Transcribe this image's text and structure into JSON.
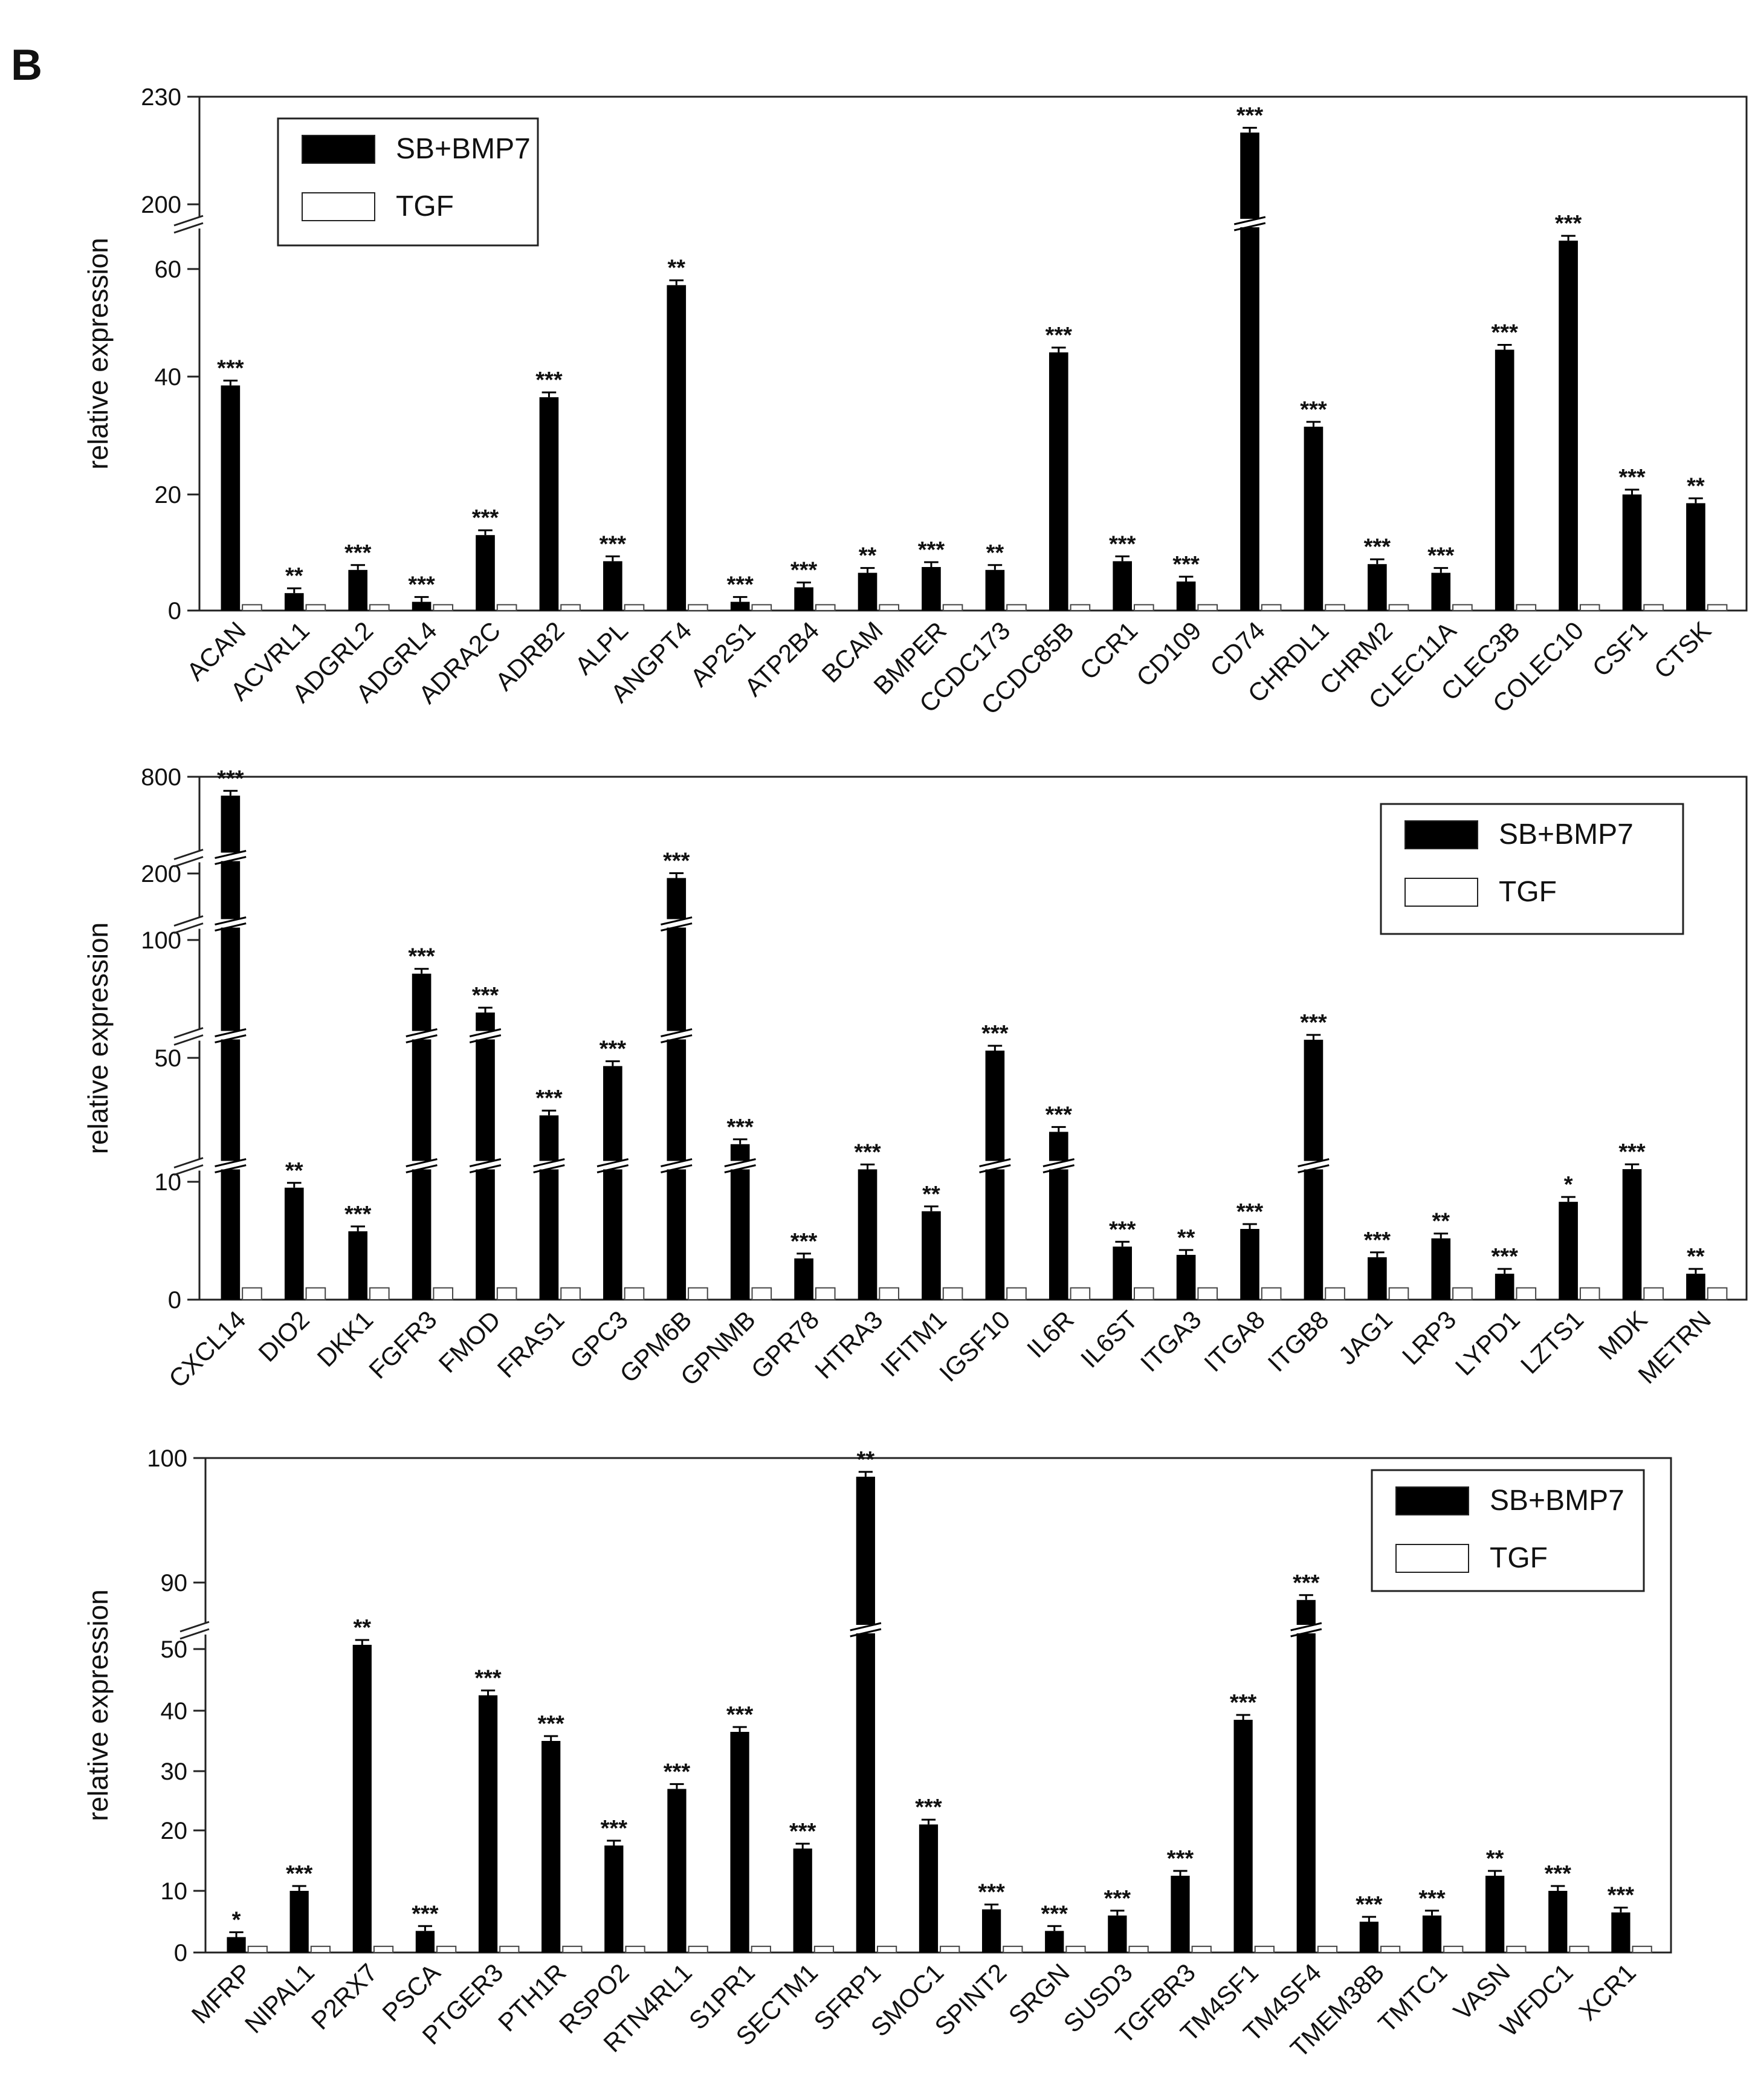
{
  "panel_label": "B",
  "legend": [
    {
      "name": "SB+BMP7",
      "fill": "#000000"
    },
    {
      "name": "TGF",
      "fill": "#ffffff"
    }
  ],
  "chart_data": [
    {
      "type": "bar",
      "ylabel": "relative  expression",
      "legend_position": "top-left",
      "y_ticks": [
        0,
        20,
        40,
        60,
        200,
        230
      ],
      "y_breaks": [
        {
          "from": 70,
          "to": 190
        }
      ],
      "categories": [
        "ACAN",
        "ACVRL1",
        "ADGRL2",
        "ADGRL4",
        "ADRA2C",
        "ADRB2",
        "ALPL",
        "ANGPT4",
        "AP2S1",
        "ATP2B4",
        "BCAM",
        "BMPER",
        "CCDC173",
        "CCDC85B",
        "CCR1",
        "CD109",
        "CD74",
        "CHRDL1",
        "CHRM2",
        "CLEC11A",
        "CLEC3B",
        "COLEC10",
        "CSF1",
        "CTSK"
      ],
      "series": [
        {
          "name": "SB+BMP7",
          "values": [
            38.5,
            3,
            7,
            1.5,
            13,
            36.5,
            8.5,
            57,
            1.5,
            4,
            6.5,
            7.5,
            7,
            44.5,
            8.5,
            5,
            220,
            31.5,
            8,
            6.5,
            45,
            67,
            20,
            18.5
          ]
        },
        {
          "name": "TGF",
          "values": [
            1,
            1,
            1,
            1,
            1,
            1,
            1,
            1,
            1,
            1,
            1,
            1,
            1,
            1,
            1,
            1,
            1,
            1,
            1,
            1,
            1,
            1,
            1,
            1
          ]
        }
      ],
      "significance": [
        "***",
        "**",
        "***",
        "***",
        "***",
        "***",
        "***",
        "**",
        "***",
        "***",
        "**",
        "***",
        "**",
        "***",
        "***",
        "***",
        "***",
        "***",
        "***",
        "***",
        "***",
        "***",
        "***",
        "**"
      ]
    },
    {
      "type": "bar",
      "ylabel": "relative  expression",
      "legend_position": "top-right",
      "y_ticks": [
        0,
        10,
        50,
        100,
        200,
        800
      ],
      "y_breaks": [
        {
          "from": 12,
          "to": 25
        },
        {
          "from": 55,
          "to": 65
        },
        {
          "from": 105,
          "to": 150
        },
        {
          "from": 210,
          "to": 600
        }
      ],
      "categories": [
        "CXCL14",
        "DIO2",
        "DKK1",
        "FGFR3",
        "FMOD",
        "FRAS1",
        "GPC3",
        "GPM6B",
        "GPNMB",
        "GPR78",
        "HTRA3",
        "IFITM1",
        "IGSF10",
        "IL6R",
        "IL6ST",
        "ITGA3",
        "ITGA8",
        "ITGB8",
        "JAG1",
        "LRP3",
        "LYPD1",
        "LZTS1",
        "MDK",
        "METRN"
      ],
      "series": [
        {
          "name": "SB+BMP7",
          "values": [
            750,
            9.5,
            5.8,
            87,
            72,
            36,
            48,
            195,
            29,
            3.5,
            12.5,
            7.5,
            52,
            32,
            4.5,
            3.8,
            6,
            55,
            3.6,
            5.2,
            2.2,
            8.3,
            12.8,
            2.2
          ]
        },
        {
          "name": "TGF",
          "values": [
            1,
            1,
            1,
            1,
            1,
            1,
            1,
            1,
            1,
            1,
            1,
            1,
            1,
            1,
            1,
            1,
            1,
            1,
            1,
            1,
            1,
            1,
            1,
            1
          ]
        }
      ],
      "significance": [
        "***",
        "**",
        "***",
        "***",
        "***",
        "***",
        "***",
        "***",
        "***",
        "***",
        "***",
        "**",
        "***",
        "***",
        "***",
        "**",
        "***",
        "***",
        "***",
        "**",
        "***",
        "*",
        "***",
        "**"
      ]
    },
    {
      "type": "bar",
      "ylabel": "relative  expression",
      "legend_position": "top-right",
      "y_ticks": [
        0,
        10,
        20,
        30,
        40,
        50,
        90,
        100
      ],
      "y_breaks": [
        {
          "from": 52,
          "to": 85
        }
      ],
      "categories": [
        "MFRP",
        "NIPAL1",
        "P2RX7",
        "PSCA",
        "PTGER3",
        "PTH1R",
        "RSPO2",
        "RTN4RL1",
        "S1PR1",
        "SECTM1",
        "SFRP1",
        "SMOC1",
        "SPINT2",
        "SRGN",
        "SUSD3",
        "TGFBR3",
        "TM4SF1",
        "TM4SF4",
        "TMEM38B",
        "TMTC1",
        "VASN",
        "WFDC1",
        "XCR1"
      ],
      "series": [
        {
          "name": "SB+BMP7",
          "values": [
            2.5,
            10,
            50.5,
            3.5,
            42.5,
            35,
            17.5,
            27,
            36.5,
            17,
            98.5,
            21,
            7,
            3.5,
            6,
            12.5,
            38.5,
            88,
            5,
            6,
            12.5,
            10,
            6.5
          ]
        },
        {
          "name": "TGF",
          "values": [
            1,
            1,
            1,
            1,
            1,
            1,
            1,
            1,
            1,
            1,
            1,
            1,
            1,
            1,
            1,
            1,
            1,
            1,
            1,
            1,
            1,
            1,
            1
          ]
        }
      ],
      "significance": [
        "*",
        "***",
        "**",
        "***",
        "***",
        "***",
        "***",
        "***",
        "***",
        "***",
        "**",
        "***",
        "***",
        "***",
        "***",
        "***",
        "***",
        "***",
        "***",
        "***",
        "**",
        "***",
        "***"
      ]
    }
  ]
}
